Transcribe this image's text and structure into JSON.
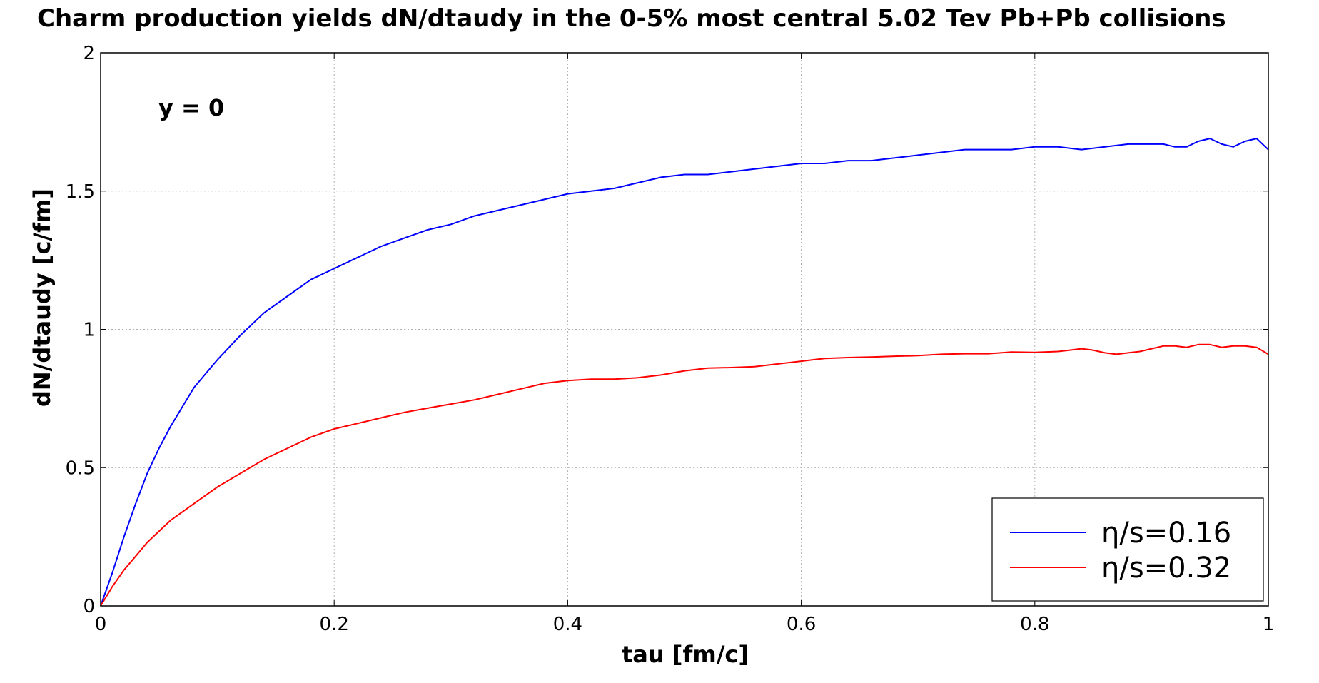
{
  "chart_data": {
    "type": "line",
    "title": "Charm production yields dN/dtaudy in the 0-5% most central 5.02 Tev Pb+Pb collisions",
    "xlabel": "tau [fm/c]",
    "ylabel": "dN/dtaudy [c/fm]",
    "annotation": "y = 0",
    "xlim": [
      0,
      1
    ],
    "ylim": [
      0,
      2
    ],
    "xticks": [
      "0",
      "0.2",
      "0.4",
      "0.6",
      "0.8",
      "1"
    ],
    "yticks": [
      "0",
      "0.5",
      "1",
      "1.5",
      "2"
    ],
    "grid": true,
    "legend_position": "lower-right",
    "series": [
      {
        "name": "η/s=0.16",
        "color": "#0000ff",
        "x": [
          0,
          0.01,
          0.02,
          0.03,
          0.04,
          0.05,
          0.06,
          0.07,
          0.08,
          0.09,
          0.1,
          0.12,
          0.14,
          0.16,
          0.18,
          0.2,
          0.22,
          0.24,
          0.26,
          0.28,
          0.3,
          0.32,
          0.34,
          0.36,
          0.38,
          0.4,
          0.42,
          0.44,
          0.46,
          0.48,
          0.5,
          0.52,
          0.54,
          0.56,
          0.58,
          0.6,
          0.62,
          0.64,
          0.66,
          0.68,
          0.7,
          0.72,
          0.74,
          0.76,
          0.78,
          0.8,
          0.82,
          0.84,
          0.86,
          0.88,
          0.9,
          0.91,
          0.92,
          0.93,
          0.94,
          0.95,
          0.96,
          0.97,
          0.98,
          0.99,
          1.0
        ],
        "y": [
          0,
          0.12,
          0.25,
          0.37,
          0.48,
          0.57,
          0.65,
          0.72,
          0.79,
          0.84,
          0.89,
          0.98,
          1.06,
          1.12,
          1.18,
          1.22,
          1.26,
          1.3,
          1.33,
          1.36,
          1.38,
          1.41,
          1.43,
          1.45,
          1.47,
          1.49,
          1.5,
          1.51,
          1.53,
          1.55,
          1.56,
          1.56,
          1.57,
          1.58,
          1.59,
          1.6,
          1.6,
          1.61,
          1.61,
          1.62,
          1.63,
          1.64,
          1.65,
          1.65,
          1.65,
          1.66,
          1.66,
          1.65,
          1.66,
          1.67,
          1.67,
          1.67,
          1.66,
          1.66,
          1.68,
          1.69,
          1.67,
          1.66,
          1.68,
          1.69,
          1.65
        ]
      },
      {
        "name": "η/s=0.32",
        "color": "#ff0000",
        "x": [
          0,
          0.01,
          0.02,
          0.03,
          0.04,
          0.05,
          0.06,
          0.07,
          0.08,
          0.09,
          0.1,
          0.12,
          0.14,
          0.16,
          0.18,
          0.2,
          0.22,
          0.24,
          0.26,
          0.28,
          0.3,
          0.32,
          0.34,
          0.36,
          0.38,
          0.4,
          0.42,
          0.44,
          0.46,
          0.48,
          0.5,
          0.52,
          0.54,
          0.56,
          0.58,
          0.6,
          0.62,
          0.64,
          0.66,
          0.68,
          0.7,
          0.72,
          0.74,
          0.76,
          0.78,
          0.8,
          0.82,
          0.83,
          0.84,
          0.85,
          0.86,
          0.87,
          0.88,
          0.89,
          0.9,
          0.91,
          0.92,
          0.93,
          0.94,
          0.95,
          0.96,
          0.97,
          0.98,
          0.99,
          1.0
        ],
        "y": [
          0,
          0.07,
          0.13,
          0.18,
          0.23,
          0.27,
          0.31,
          0.34,
          0.37,
          0.4,
          0.43,
          0.48,
          0.53,
          0.57,
          0.61,
          0.64,
          0.66,
          0.68,
          0.7,
          0.715,
          0.73,
          0.745,
          0.765,
          0.785,
          0.805,
          0.815,
          0.82,
          0.82,
          0.825,
          0.835,
          0.85,
          0.86,
          0.862,
          0.865,
          0.875,
          0.885,
          0.895,
          0.898,
          0.9,
          0.903,
          0.905,
          0.91,
          0.912,
          0.912,
          0.918,
          0.917,
          0.92,
          0.925,
          0.93,
          0.925,
          0.915,
          0.91,
          0.915,
          0.92,
          0.93,
          0.94,
          0.94,
          0.935,
          0.945,
          0.945,
          0.935,
          0.94,
          0.94,
          0.935,
          0.91
        ]
      }
    ]
  }
}
